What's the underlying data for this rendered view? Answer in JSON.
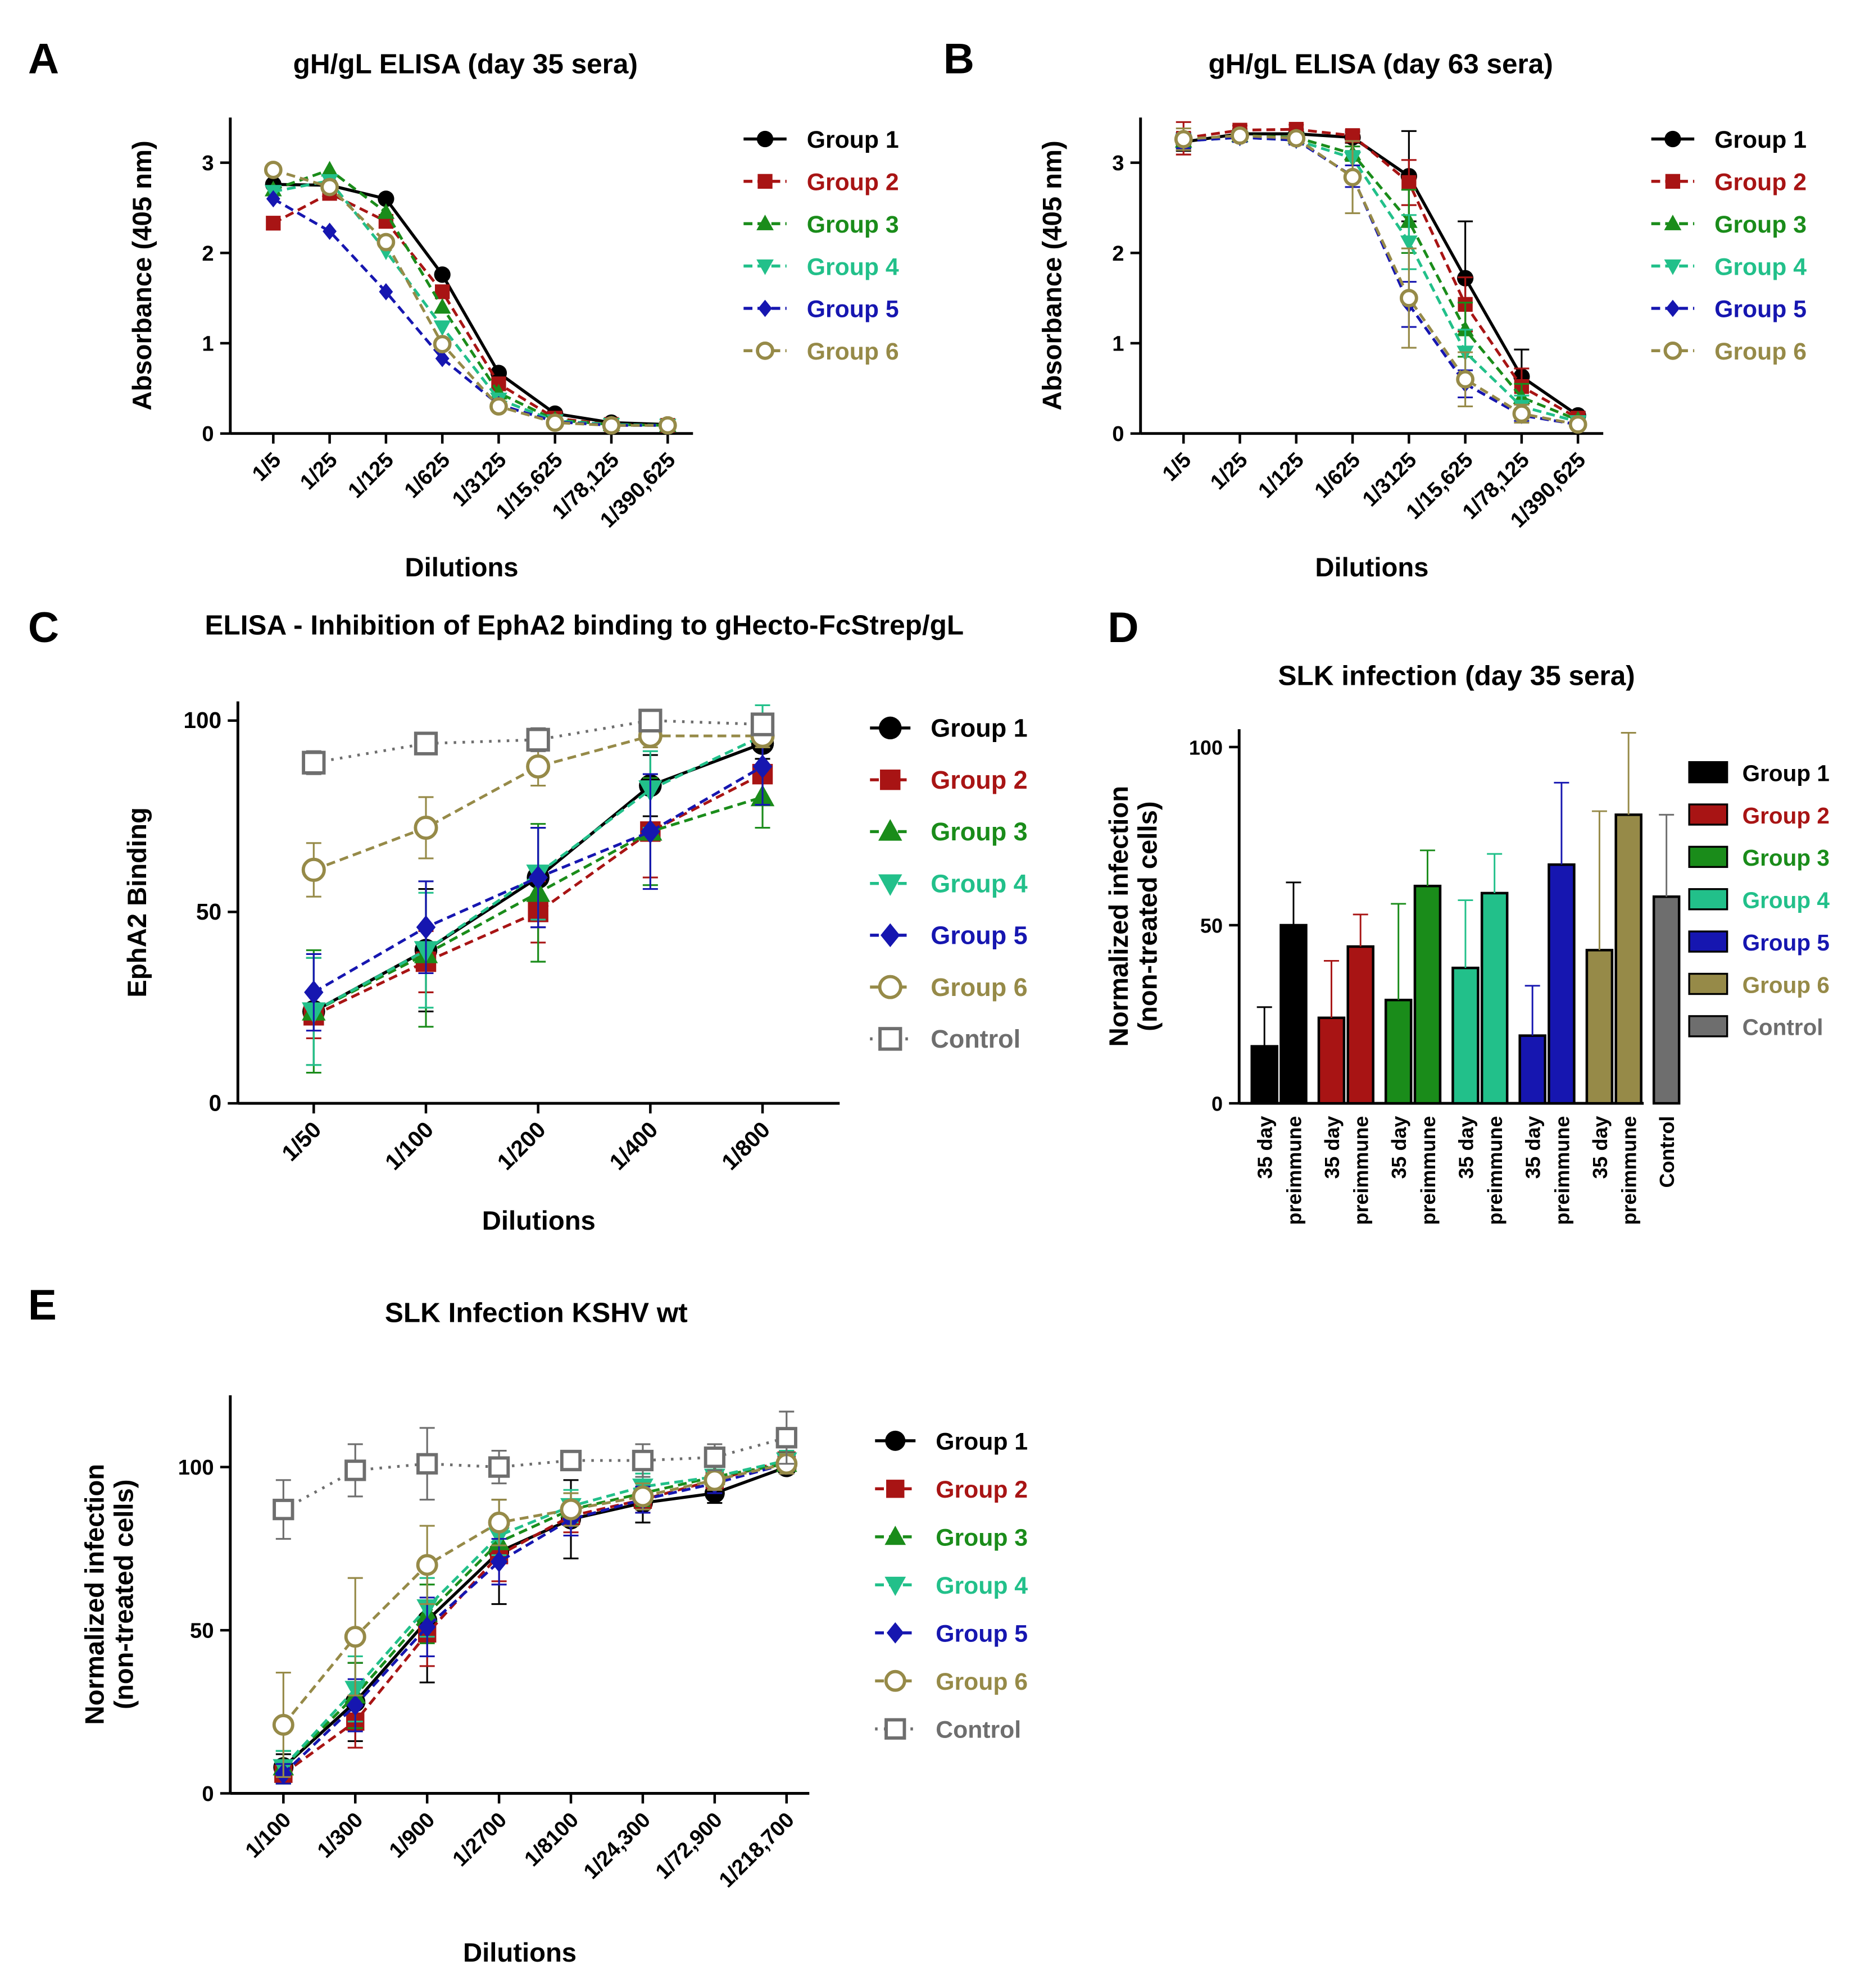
{
  "figure": {
    "colors": {
      "Group 1": "#000000",
      "Group 2": "#a81414",
      "Group 3": "#1a8c1a",
      "Group 4": "#22c08a",
      "Group 5": "#1616b0",
      "Group 6": "#968a48",
      "Control": "#6e6e6e"
    }
  },
  "chart_data": [
    {
      "panel": "A",
      "type": "line",
      "title": "gH/gL ELISA (day 35 sera)",
      "xlabel": "Dilutions",
      "ylabel": "Absorbance (405 nm)",
      "ylim": [
        0,
        3.5
      ],
      "yticks": [
        "0",
        "1",
        "2",
        "3"
      ],
      "categories": [
        "1/5",
        "1/25",
        "1/125",
        "1/625",
        "1/3125",
        "1/15,625",
        "1/78,125",
        "1/390,625"
      ],
      "legend_position": "right",
      "series": [
        {
          "name": "Group 1",
          "marker": "circle",
          "dash": "solid",
          "values": [
            2.76,
            2.75,
            2.6,
            1.76,
            0.67,
            0.22,
            0.12,
            0.1
          ]
        },
        {
          "name": "Group 2",
          "marker": "square",
          "dash": "dashed",
          "values": [
            2.33,
            2.66,
            2.35,
            1.57,
            0.55,
            0.17,
            0.1,
            0.09
          ]
        },
        {
          "name": "Group 3",
          "marker": "triangle-up",
          "dash": "dashed",
          "values": [
            2.7,
            2.92,
            2.45,
            1.4,
            0.45,
            0.15,
            0.1,
            0.09
          ]
        },
        {
          "name": "Group 4",
          "marker": "triangle-down",
          "dash": "dashed",
          "values": [
            2.68,
            2.8,
            2.02,
            1.18,
            0.38,
            0.14,
            0.1,
            0.09
          ]
        },
        {
          "name": "Group 5",
          "marker": "diamond",
          "dash": "dashed",
          "values": [
            2.6,
            2.24,
            1.57,
            0.83,
            0.32,
            0.13,
            0.09,
            0.09
          ]
        },
        {
          "name": "Group 6",
          "marker": "open-circle",
          "dash": "dashed",
          "values": [
            2.92,
            2.73,
            2.12,
            0.99,
            0.3,
            0.12,
            0.09,
            0.09
          ]
        }
      ]
    },
    {
      "panel": "B",
      "type": "line",
      "title": "gH/gL ELISA (day 63 sera)",
      "xlabel": "Dilutions",
      "ylabel": "Absorbance (405 nm)",
      "ylim": [
        0,
        3.5
      ],
      "yticks": [
        "0",
        "1",
        "2",
        "3"
      ],
      "categories": [
        "1/5",
        "1/25",
        "1/125",
        "1/625",
        "1/3125",
        "1/15,625",
        "1/78,125",
        "1/390,625"
      ],
      "legend_position": "right",
      "series": [
        {
          "name": "Group 1",
          "marker": "circle",
          "dash": "solid",
          "values": [
            3.23,
            3.32,
            3.32,
            3.28,
            2.85,
            1.72,
            0.63,
            0.2
          ],
          "errors": [
            0.1,
            0.05,
            0.05,
            0.06,
            0.5,
            0.63,
            0.3,
            0.04
          ]
        },
        {
          "name": "Group 2",
          "marker": "square",
          "dash": "dashed",
          "values": [
            3.27,
            3.36,
            3.37,
            3.3,
            2.78,
            1.43,
            0.52,
            0.17
          ],
          "errors": [
            0.18,
            0.05,
            0.05,
            0.06,
            0.25,
            0.3,
            0.2,
            0.03
          ]
        },
        {
          "name": "Group 3",
          "marker": "triangle-up",
          "dash": "dashed",
          "values": [
            3.24,
            3.3,
            3.28,
            3.1,
            2.35,
            1.15,
            0.4,
            0.15
          ],
          "errors": [
            0.08,
            0.05,
            0.05,
            0.08,
            0.35,
            0.3,
            0.15,
            0.03
          ]
        },
        {
          "name": "Group 4",
          "marker": "triangle-down",
          "dash": "dashed",
          "values": [
            3.24,
            3.28,
            3.25,
            3.05,
            2.12,
            0.9,
            0.3,
            0.13
          ],
          "errors": [
            0.08,
            0.05,
            0.05,
            0.08,
            0.3,
            0.25,
            0.12,
            0.03
          ]
        },
        {
          "name": "Group 5",
          "marker": "diamond",
          "dash": "dashed",
          "values": [
            3.24,
            3.28,
            3.25,
            2.85,
            1.43,
            0.55,
            0.2,
            0.1
          ],
          "errors": [
            0.08,
            0.05,
            0.05,
            0.12,
            0.25,
            0.15,
            0.06,
            0.02
          ]
        },
        {
          "name": "Group 6",
          "marker": "open-circle",
          "dash": "dashed",
          "values": [
            3.26,
            3.3,
            3.27,
            2.84,
            1.5,
            0.6,
            0.22,
            0.1
          ],
          "errors": [
            0.12,
            0.05,
            0.05,
            0.4,
            0.55,
            0.3,
            0.1,
            0.02
          ]
        }
      ]
    },
    {
      "panel": "C",
      "type": "line",
      "title": "ELISA - Inhibition of EphA2 binding to gHecto-FcStrep/gL",
      "xlabel": "Dilutions",
      "ylabel": "EphA2 Binding",
      "ylim": [
        0,
        105
      ],
      "yticks": [
        "0",
        "50",
        "100"
      ],
      "categories": [
        "1/50",
        "1/100",
        "1/200",
        "1/400",
        "1/800"
      ],
      "legend_position": "right",
      "series": [
        {
          "name": "Group 1",
          "marker": "circle",
          "dash": "solid",
          "values": [
            24,
            40,
            59,
            83,
            94
          ],
          "errors": [
            14,
            16,
            13,
            8,
            4
          ]
        },
        {
          "name": "Group 2",
          "marker": "square",
          "dash": "dashed",
          "values": [
            23,
            37,
            50,
            71,
            86
          ],
          "errors": [
            6,
            8,
            8,
            12,
            8
          ]
        },
        {
          "name": "Group 3",
          "marker": "triangle-up",
          "dash": "dashed",
          "values": [
            24,
            39,
            55,
            71,
            80
          ],
          "errors": [
            16,
            19,
            18,
            14,
            8
          ]
        },
        {
          "name": "Group 4",
          "marker": "triangle-down",
          "dash": "dashed",
          "values": [
            24,
            40,
            60,
            82,
            96
          ],
          "errors": [
            14,
            15,
            12,
            10,
            8
          ]
        },
        {
          "name": "Group 5",
          "marker": "diamond",
          "dash": "dashed",
          "values": [
            29,
            46,
            59,
            71,
            88
          ],
          "errors": [
            10,
            12,
            13,
            15,
            10
          ]
        },
        {
          "name": "Group 6",
          "marker": "open-circle",
          "dash": "dashed",
          "values": [
            61,
            72,
            88,
            96,
            96
          ],
          "errors": [
            7,
            8,
            5,
            3,
            3
          ]
        },
        {
          "name": "Control",
          "marker": "open-square",
          "dash": "dotted",
          "values": [
            89,
            94,
            95,
            100,
            99
          ],
          "errors": [
            3,
            2,
            3,
            2,
            2
          ]
        }
      ]
    },
    {
      "panel": "D",
      "type": "bar",
      "title": "SLK infection (day 35 sera)",
      "xlabel": "",
      "ylabel": "Normalized infection\n(non-treated cells)",
      "ylim": [
        0,
        105
      ],
      "yticks": [
        "0",
        "50",
        "100"
      ],
      "categories": [
        "35 day",
        "preimmune",
        "35 day",
        "preimmune",
        "35 day",
        "preimmune",
        "35 day",
        "preimmune",
        "35 day",
        "preimmune",
        "35 day",
        "preimmune",
        "Control"
      ],
      "bar_groups": [
        "Group 1",
        "Group 1",
        "Group 2",
        "Group 2",
        "Group 3",
        "Group 3",
        "Group 4",
        "Group 4",
        "Group 5",
        "Group 5",
        "Group 6",
        "Group 6",
        "Control"
      ],
      "values": [
        16,
        50,
        24,
        44,
        29,
        61,
        38,
        59,
        19,
        67,
        43,
        81,
        58
      ],
      "errors": [
        11,
        12,
        16,
        9,
        27,
        10,
        19,
        11,
        14,
        23,
        39,
        23,
        23
      ],
      "legend": [
        "Group 1",
        "Group 2",
        "Group 3",
        "Group 4",
        "Group 5",
        "Group 6",
        "Control"
      ],
      "legend_position": "right"
    },
    {
      "panel": "E",
      "type": "line",
      "title": "SLK Infection KSHV wt",
      "xlabel": "Dilutions",
      "ylabel": "Normalized infection\n(non-treated cells)",
      "ylim": [
        0,
        122
      ],
      "yticks": [
        "0",
        "50",
        "100"
      ],
      "categories": [
        "1/100",
        "1/300",
        "1/900",
        "1/2700",
        "1/8100",
        "1/24,300",
        "1/72,900",
        "1/218,700"
      ],
      "legend_position": "right",
      "series": [
        {
          "name": "Group 1",
          "marker": "circle",
          "dash": "solid",
          "values": [
            8,
            28,
            53,
            74,
            84,
            89,
            92,
            100
          ],
          "errors": [
            4,
            12,
            19,
            16,
            12,
            6,
            3,
            2
          ]
        },
        {
          "name": "Group 2",
          "marker": "square",
          "dash": "dashed",
          "values": [
            6,
            22,
            49,
            73,
            85,
            90,
            96,
            102
          ],
          "errors": [
            3,
            8,
            10,
            8,
            5,
            4,
            3,
            3
          ]
        },
        {
          "name": "Group 3",
          "marker": "triangle-up",
          "dash": "dashed",
          "values": [
            8,
            30,
            55,
            77,
            87,
            92,
            97,
            101
          ],
          "errors": [
            5,
            10,
            9,
            6,
            5,
            4,
            3,
            3
          ]
        },
        {
          "name": "Group 4",
          "marker": "triangle-down",
          "dash": "dashed",
          "values": [
            8,
            32,
            57,
            79,
            88,
            94,
            97,
            102
          ],
          "errors": [
            5,
            10,
            9,
            6,
            5,
            4,
            3,
            3
          ]
        },
        {
          "name": "Group 5",
          "marker": "diamond",
          "dash": "dashed",
          "values": [
            6,
            27,
            51,
            71,
            84,
            90,
            95,
            101
          ],
          "errors": [
            3,
            8,
            9,
            7,
            5,
            4,
            3,
            3
          ]
        },
        {
          "name": "Group 6",
          "marker": "open-circle",
          "dash": "dashed",
          "values": [
            21,
            48,
            70,
            83,
            87,
            91,
            96,
            101
          ],
          "errors": [
            16,
            18,
            12,
            7,
            5,
            4,
            3,
            3
          ]
        },
        {
          "name": "Control",
          "marker": "open-square",
          "dash": "dotted",
          "values": [
            87,
            99,
            101,
            100,
            102,
            102,
            103,
            109
          ],
          "errors": [
            9,
            8,
            11,
            5,
            3,
            5,
            4,
            8
          ]
        }
      ]
    }
  ]
}
